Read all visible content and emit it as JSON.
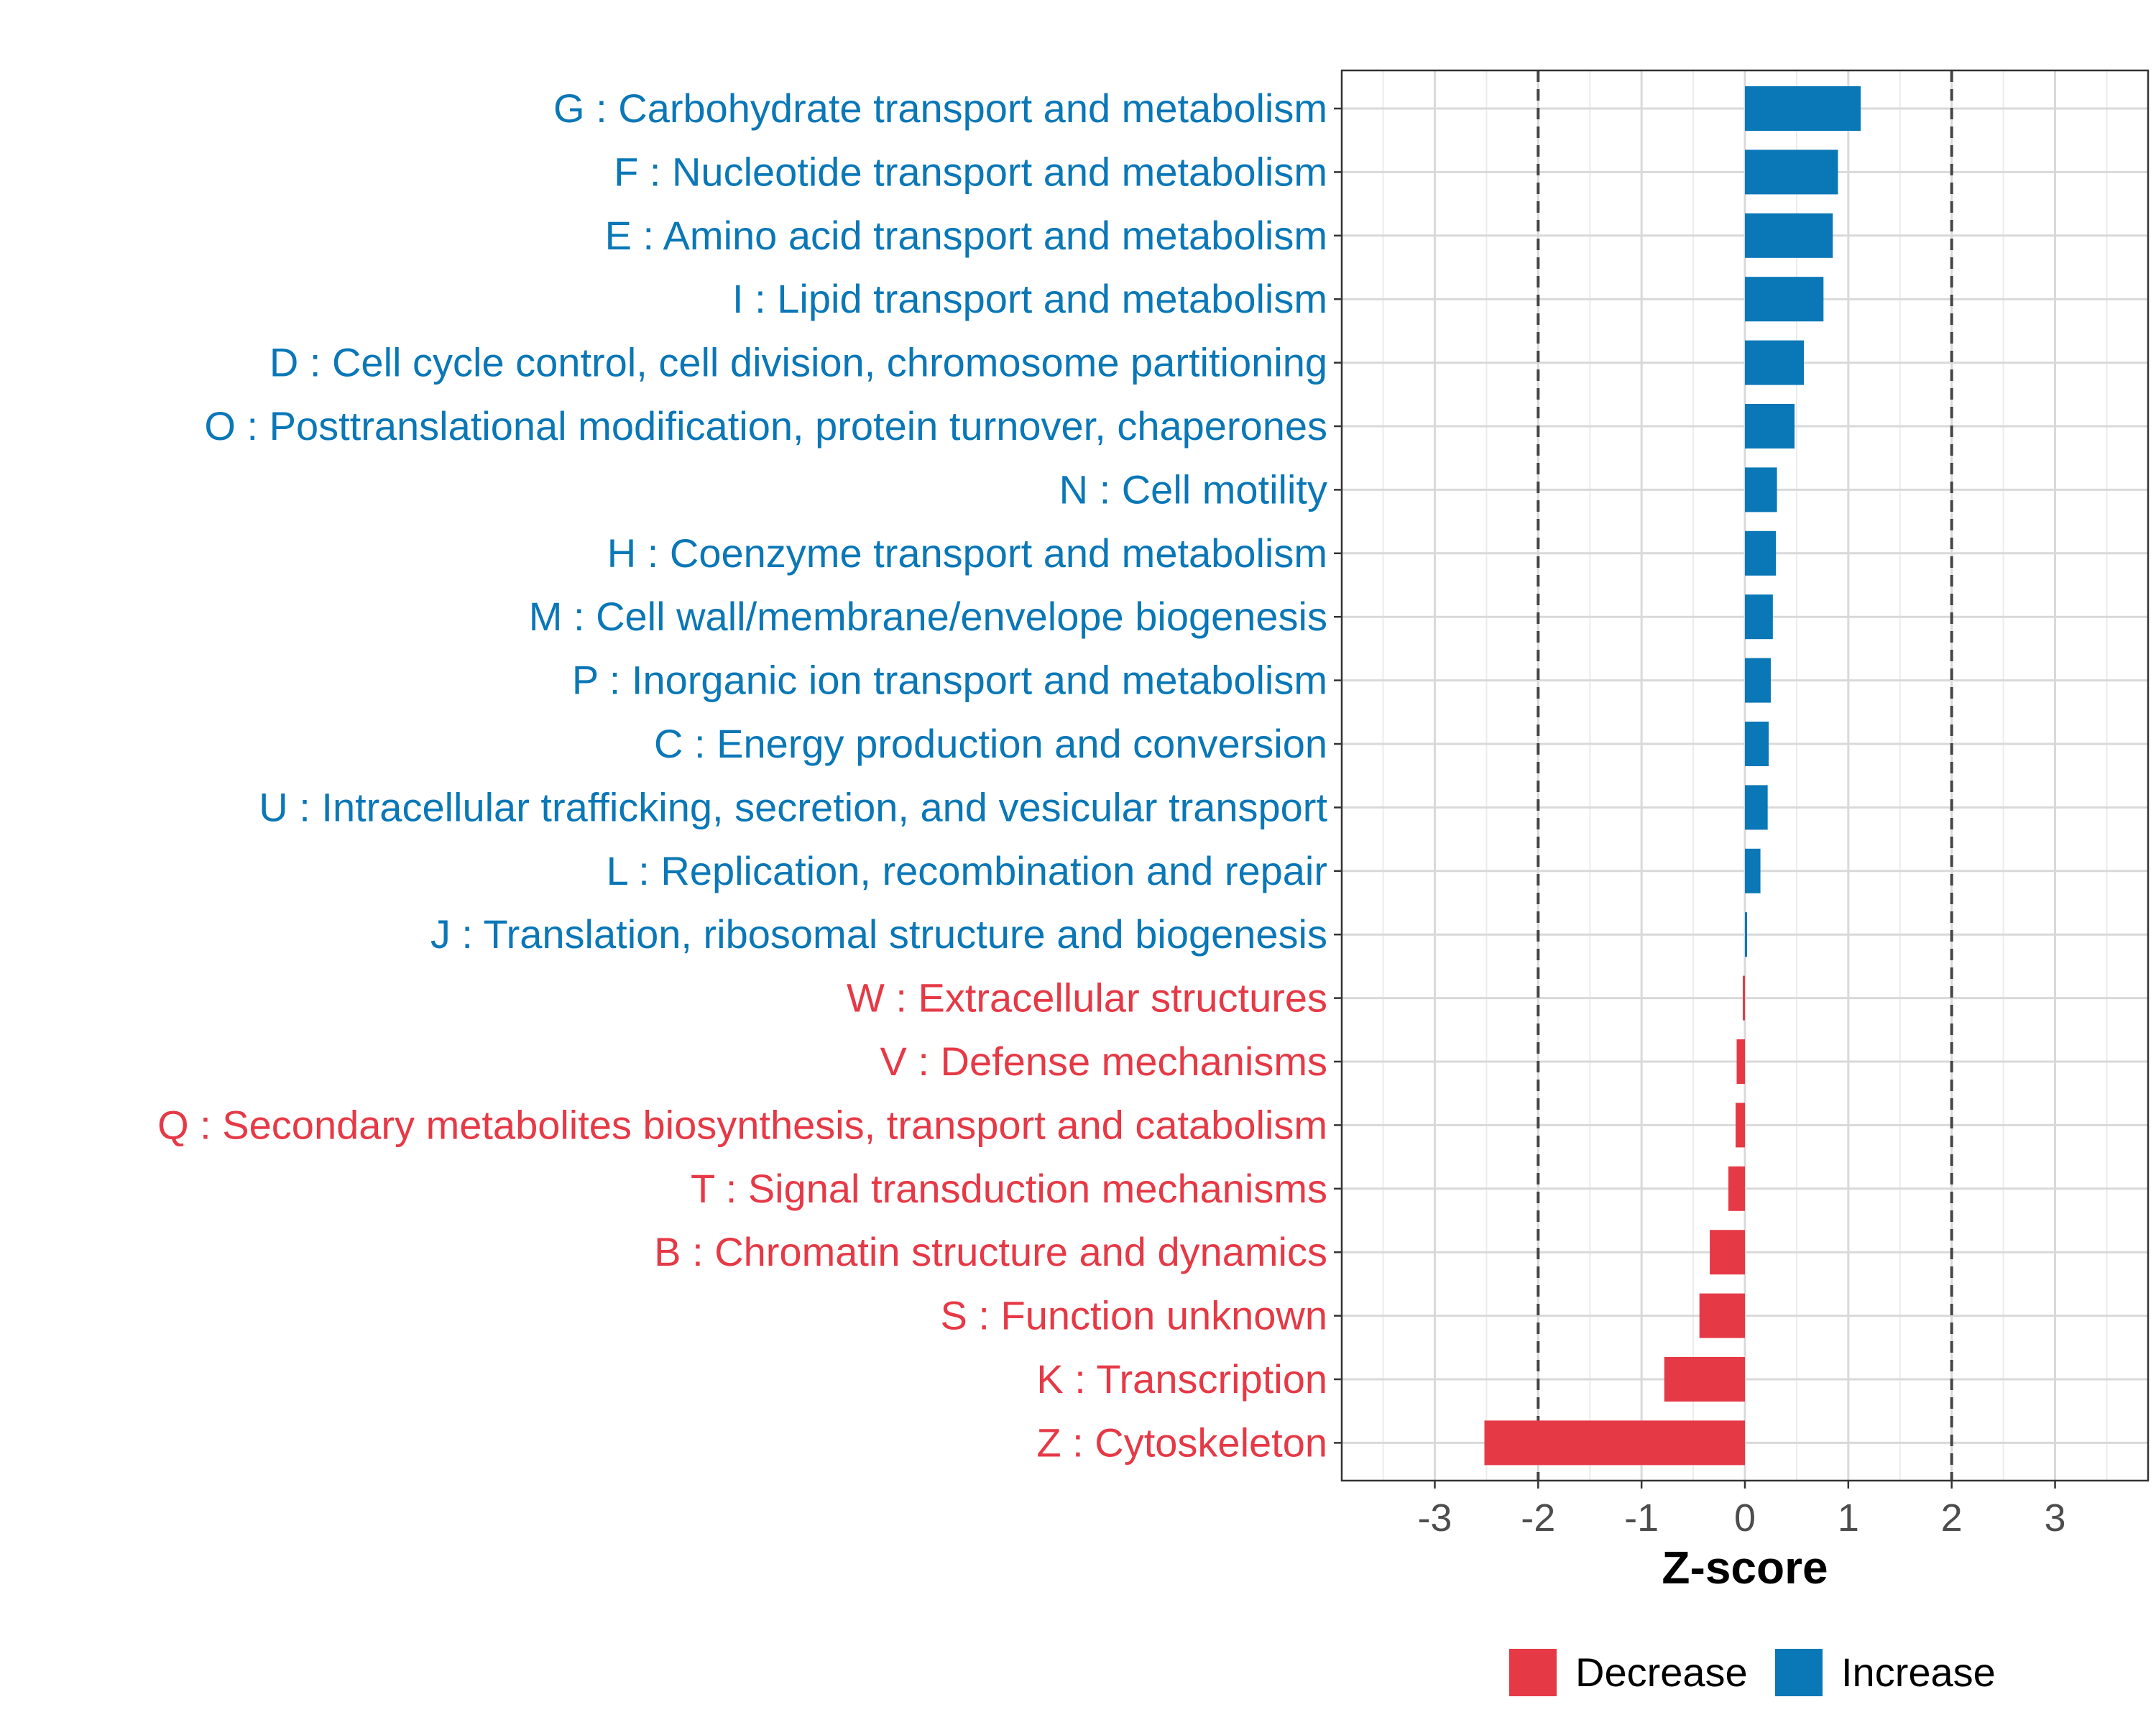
{
  "chart_data": {
    "type": "bar",
    "orientation": "horizontal",
    "xlabel": "Z-score",
    "xlim": [
      -3.9,
      3.9
    ],
    "xticks": [
      -3,
      -2,
      -1,
      0,
      1,
      2,
      3
    ],
    "reference_lines": [
      -2,
      2
    ],
    "grid": true,
    "legend_position": "bottom",
    "categories": [
      "G : Carbohydrate transport and metabolism",
      "F : Nucleotide transport and metabolism",
      "E : Amino acid transport and metabolism",
      "I : Lipid transport and metabolism",
      "D : Cell cycle control, cell division, chromosome partitioning",
      "O : Posttranslational modification, protein turnover, chaperones",
      "N : Cell motility",
      "H : Coenzyme transport and metabolism",
      "M : Cell wall/membrane/envelope biogenesis",
      "P : Inorganic ion transport and metabolism",
      "C : Energy production and conversion",
      "U : Intracellular trafficking, secretion, and vesicular transport",
      "L : Replication, recombination and repair",
      "J : Translation, ribosomal structure and biogenesis",
      "W : Extracellular structures",
      "V : Defense mechanisms",
      "Q : Secondary metabolites biosynthesis, transport and catabolism",
      "T : Signal transduction mechanisms",
      "B : Chromatin structure and dynamics",
      "S : Function unknown",
      "K : Transcription",
      "Z : Cytoskeleton"
    ],
    "values": [
      1.12,
      0.9,
      0.85,
      0.76,
      0.57,
      0.48,
      0.31,
      0.3,
      0.27,
      0.25,
      0.23,
      0.22,
      0.15,
      0.02,
      -0.02,
      -0.08,
      -0.09,
      -0.16,
      -0.34,
      -0.44,
      -0.78,
      -2.52
    ],
    "legend": [
      {
        "label": "Decrease",
        "color": "#e63946"
      },
      {
        "label": "Increase",
        "color": "#0a77b7"
      }
    ],
    "colors": {
      "decrease": "#e63946",
      "increase": "#0a77b7"
    }
  }
}
